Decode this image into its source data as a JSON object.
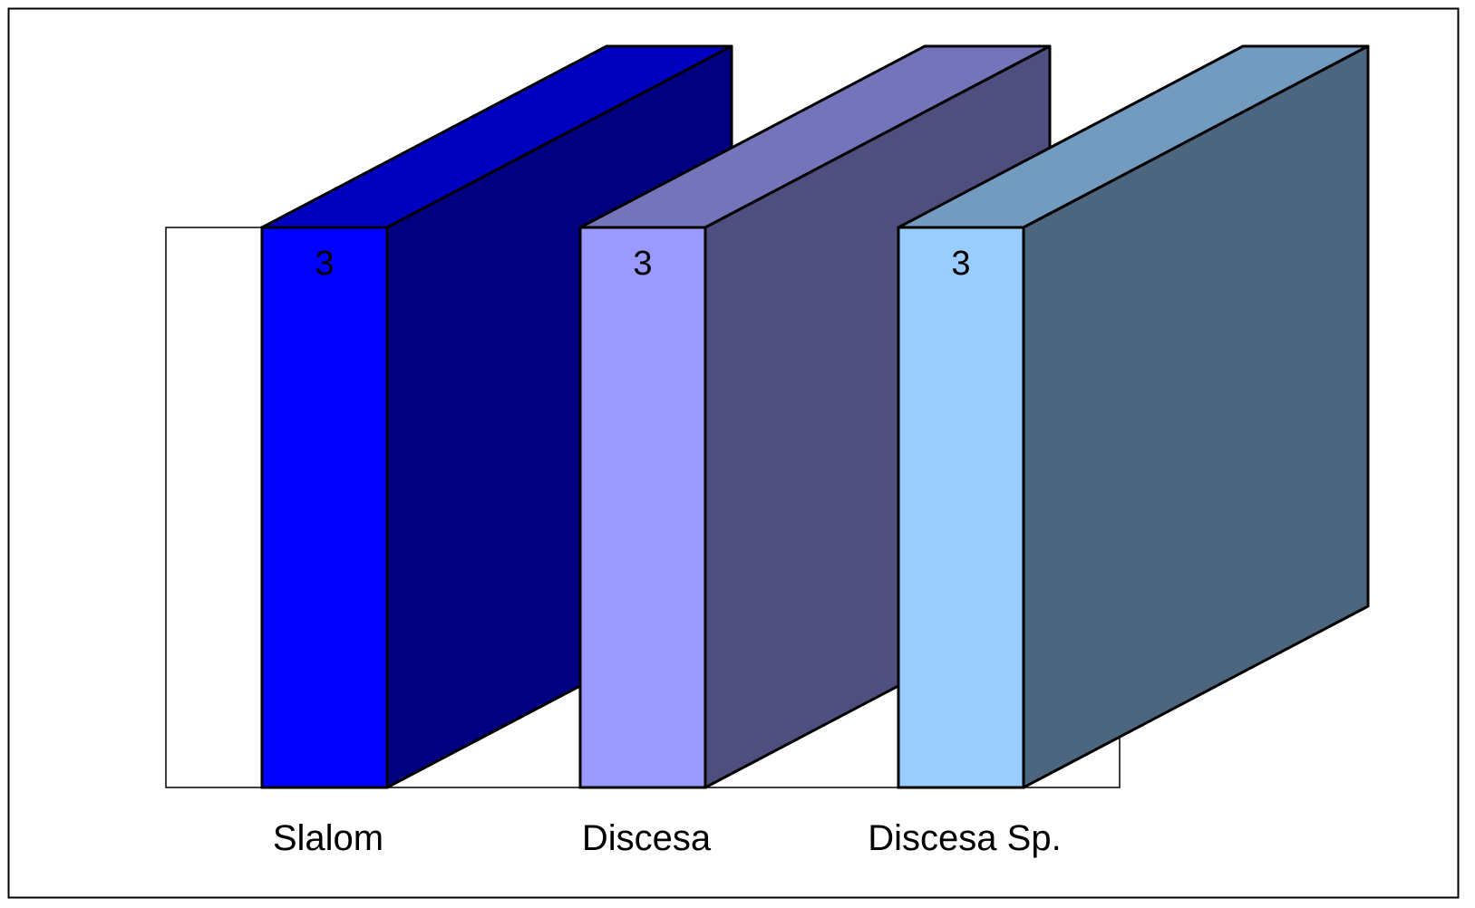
{
  "chart_data": {
    "type": "bar",
    "variant": "3d-column",
    "categories": [
      "Slalom",
      "Discesa",
      "Discesa Sp."
    ],
    "values": [
      3,
      3,
      3
    ],
    "data_labels": [
      "3",
      "3",
      "3"
    ],
    "ylim": [
      0,
      3
    ],
    "title": "",
    "xlabel": "",
    "ylabel": "",
    "grid": false,
    "legend": "none",
    "colors": {
      "front": [
        "#0000FF",
        "#9999FF",
        "#99CCFF"
      ],
      "top": [
        "#0000C0",
        "#7474BA",
        "#739ABF"
      ],
      "side": [
        "#000080",
        "#4F4F7F",
        "#4C667F"
      ]
    }
  }
}
